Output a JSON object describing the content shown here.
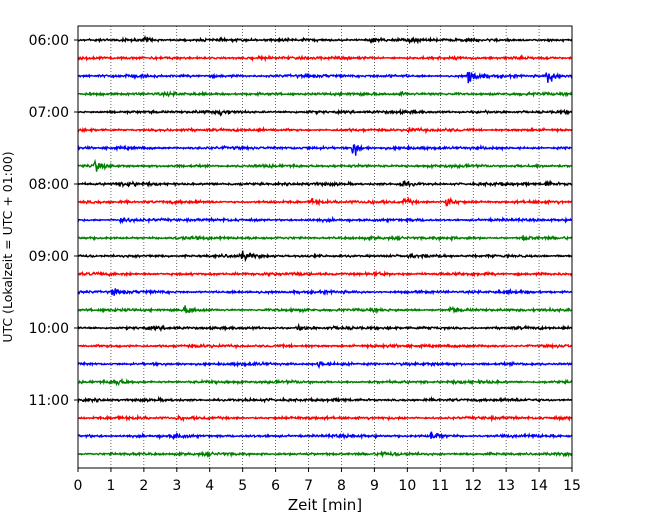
{
  "chart_data": {
    "type": "line",
    "title": "",
    "xlabel": "Zeit  [min]",
    "ylabel": "UTC (Lokalzeit = UTC + 01:00)",
    "xlim": [
      0,
      15
    ],
    "x_ticks": [
      "0",
      "1",
      "2",
      "3",
      "4",
      "5",
      "6",
      "7",
      "8",
      "9",
      "10",
      "11",
      "12",
      "13",
      "14",
      "15"
    ],
    "y_tick_labels": [
      "06:00",
      "07:00",
      "08:00",
      "09:00",
      "10:00",
      "11:00"
    ],
    "row_start": "06:00",
    "row_interval_minutes": 15,
    "row_count": 24,
    "row_colors": [
      "#000000",
      "#ff0000",
      "#0000ff",
      "#008000"
    ],
    "grid": "vertical-dotted",
    "events": [
      {
        "row": 0,
        "time_min": 2.05,
        "amp": 0.25
      },
      {
        "row": 0,
        "time_min": 8.9,
        "amp": 0.3
      },
      {
        "row": 0,
        "time_min": 10.1,
        "amp": 0.35
      },
      {
        "row": 2,
        "time_min": 11.85,
        "amp": 1.0
      },
      {
        "row": 2,
        "time_min": 14.25,
        "amp": 0.9
      },
      {
        "row": 3,
        "time_min": 9.8,
        "amp": 0.2
      },
      {
        "row": 4,
        "time_min": 4.3,
        "amp": 0.35
      },
      {
        "row": 5,
        "time_min": 10.0,
        "amp": 0.25
      },
      {
        "row": 6,
        "time_min": 8.35,
        "amp": 1.0
      },
      {
        "row": 7,
        "time_min": 0.5,
        "amp": 0.6
      },
      {
        "row": 8,
        "time_min": 1.4,
        "amp": 0.3
      },
      {
        "row": 8,
        "time_min": 9.8,
        "amp": 0.4
      },
      {
        "row": 8,
        "time_min": 14.2,
        "amp": 0.3
      },
      {
        "row": 9,
        "time_min": 7.1,
        "amp": 0.4
      },
      {
        "row": 9,
        "time_min": 9.9,
        "amp": 0.45
      },
      {
        "row": 9,
        "time_min": 11.2,
        "amp": 0.55
      },
      {
        "row": 10,
        "time_min": 1.3,
        "amp": 0.3
      },
      {
        "row": 11,
        "time_min": 13.5,
        "amp": 0.3
      },
      {
        "row": 12,
        "time_min": 5.0,
        "amp": 0.45
      },
      {
        "row": 13,
        "time_min": 9.0,
        "amp": 0.25
      },
      {
        "row": 14,
        "time_min": 1.05,
        "amp": 0.45
      },
      {
        "row": 15,
        "time_min": 3.25,
        "amp": 0.4
      },
      {
        "row": 15,
        "time_min": 11.3,
        "amp": 0.3
      },
      {
        "row": 16,
        "time_min": 6.7,
        "amp": 0.3
      },
      {
        "row": 18,
        "time_min": 7.3,
        "amp": 0.4
      },
      {
        "row": 19,
        "time_min": 1.1,
        "amp": 0.4
      },
      {
        "row": 21,
        "time_min": 3.0,
        "amp": 0.2
      },
      {
        "row": 22,
        "time_min": 10.7,
        "amp": 0.45
      },
      {
        "row": 22,
        "time_min": 2.9,
        "amp": 0.3
      },
      {
        "row": 23,
        "time_min": 9.2,
        "amp": 0.2
      }
    ]
  }
}
